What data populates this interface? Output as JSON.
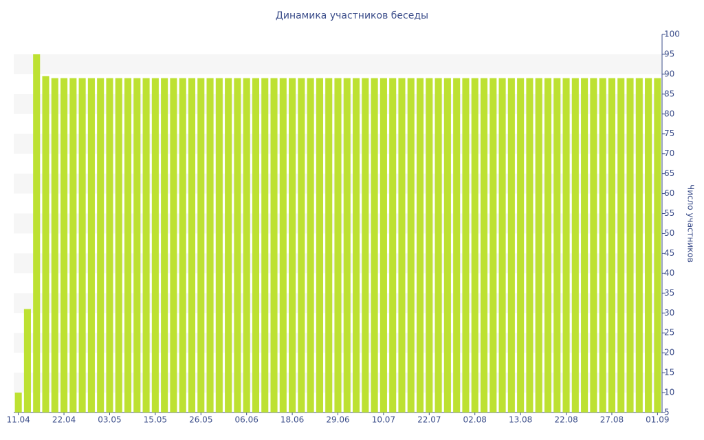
{
  "chart_data": {
    "type": "bar",
    "title": "Динамика участников беседы",
    "y_label": "Число участников",
    "categories": [
      "11.04",
      null,
      null,
      null,
      null,
      "22.04",
      null,
      null,
      null,
      null,
      "03.05",
      null,
      null,
      null,
      null,
      "15.05",
      null,
      null,
      null,
      null,
      "26.05",
      null,
      null,
      null,
      null,
      "06.06",
      null,
      null,
      null,
      null,
      "18.06",
      null,
      null,
      null,
      null,
      "29.06",
      null,
      null,
      null,
      null,
      "10.07",
      null,
      null,
      null,
      null,
      "22.07",
      null,
      null,
      null,
      null,
      "02.08",
      null,
      null,
      null,
      null,
      "13.08",
      null,
      null,
      null,
      null,
      "22.08",
      null,
      null,
      null,
      null,
      "27.08",
      null,
      null,
      null,
      null,
      "01.09"
    ],
    "values": [
      10,
      31,
      95,
      89.5,
      89,
      89,
      89,
      89,
      89,
      89,
      89,
      89,
      89,
      89,
      89,
      89,
      89,
      89,
      89,
      89,
      89,
      89,
      89,
      89,
      89,
      89,
      89,
      89,
      89,
      89,
      89,
      89,
      89,
      89,
      89,
      89,
      89,
      89,
      89,
      89,
      89,
      89,
      89,
      89,
      89,
      89,
      89,
      89,
      89,
      89,
      89,
      89,
      89,
      89,
      89,
      89,
      89,
      89,
      89,
      89,
      89,
      89,
      89,
      89,
      89,
      89,
      89,
      89,
      89,
      89,
      89
    ],
    "color": "#bde132",
    "ylim": [
      5,
      100
    ],
    "yticks": [
      5,
      10,
      15,
      20,
      25,
      30,
      35,
      40,
      45,
      50,
      55,
      60,
      65,
      70,
      75,
      80,
      85,
      90,
      95,
      100
    ],
    "y_axis_side": "right",
    "bands": true
  }
}
